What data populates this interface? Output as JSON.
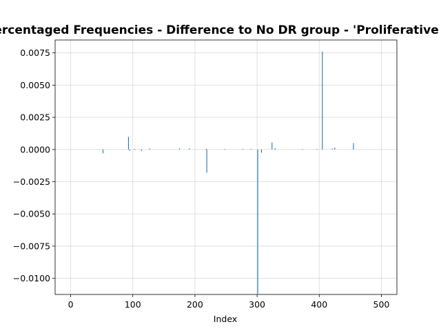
{
  "chart_data": {
    "type": "bar",
    "title": "Percentaged Frequencies - Difference to No DR group - 'Proliferative DR'",
    "xlabel": "Index",
    "ylabel": "",
    "xlim": [
      -25,
      525
    ],
    "ylim": [
      -0.01125,
      0.0085
    ],
    "grid": true,
    "xticks": [
      0,
      100,
      200,
      300,
      400,
      500
    ],
    "xtick_labels": [
      "0",
      "100",
      "200",
      "300",
      "400",
      "500"
    ],
    "yticks": [
      -0.01,
      -0.0075,
      -0.005,
      -0.0025,
      0.0,
      0.0025,
      0.005,
      0.0075
    ],
    "ytick_labels": [
      "−0.0100",
      "−0.0075",
      "−0.0050",
      "−0.0025",
      "0.0000",
      "0.0025",
      "0.0050",
      "0.0075"
    ],
    "bar_color": "#1f77b4",
    "x": [
      52,
      93,
      95,
      103,
      114,
      127,
      175,
      191,
      218,
      219,
      248,
      277,
      290,
      301,
      307,
      324,
      329,
      373,
      396,
      405,
      421,
      425,
      455
    ],
    "values": [
      -0.0003,
      0.00098,
      -0.0001,
      5e-05,
      -0.0001,
      8e-05,
      8e-05,
      8e-05,
      6e-05,
      -0.0018,
      4e-05,
      5e-05,
      5e-05,
      -0.0112,
      -0.00025,
      0.00055,
      0.0001,
      4e-05,
      4e-05,
      0.0076,
      8e-05,
      0.00015,
      0.0005
    ]
  }
}
